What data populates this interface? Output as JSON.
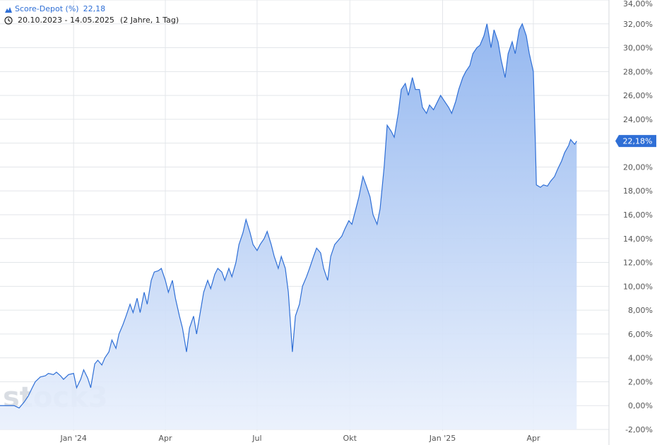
{
  "legend": {
    "series_name": "Score-Depot (%)",
    "series_value": "22,18",
    "range_icon": "clock-icon",
    "series_icon": "mountain-chart-icon",
    "date_range": "20.10.2023 - 14.05.2025",
    "range_detail": "(2 Jahre, 1 Tag)"
  },
  "watermark": "stock3",
  "chart_data": {
    "type": "area",
    "title": "",
    "xlabel": "",
    "ylabel": "",
    "unit": "%",
    "x_ticks": [
      {
        "label": "Jan '24",
        "date": "2024-01-01"
      },
      {
        "label": "Apr",
        "date": "2024-04-01"
      },
      {
        "label": "Jul",
        "date": "2024-07-01"
      },
      {
        "label": "Okt",
        "date": "2024-10-01"
      },
      {
        "label": "Jan '25",
        "date": "2025-01-01"
      },
      {
        "label": "Apr",
        "date": "2025-04-01"
      }
    ],
    "y_ticks": [
      "34,00%",
      "32,00%",
      "30,00%",
      "28,00%",
      "26,00%",
      "24,00%",
      "22,00%",
      "20,00%",
      "18,00%",
      "16,00%",
      "14,00%",
      "12,00%",
      "10,00%",
      "8,00%",
      "6,00%",
      "4,00%",
      "2,00%",
      "0,00%",
      "-2,00%"
    ],
    "y_tick_values": [
      34,
      32,
      30,
      28,
      26,
      24,
      22,
      20,
      18,
      16,
      14,
      12,
      10,
      8,
      6,
      4,
      2,
      0,
      -2
    ],
    "xlim": [
      "2023-10-20",
      "2025-06-15"
    ],
    "ylim": [
      -2,
      34
    ],
    "grid": true,
    "last_value_label": "22,18%",
    "last_value": 22.18,
    "series": [
      {
        "name": "Score-Depot (%)",
        "color": "#2f6fd6",
        "points": [
          [
            "2023-10-20",
            0
          ],
          [
            "2023-10-27",
            0
          ],
          [
            "2023-11-03",
            0
          ],
          [
            "2023-11-08",
            -0.2
          ],
          [
            "2023-11-13",
            0.3
          ],
          [
            "2023-11-17",
            0.8
          ],
          [
            "2023-11-21",
            1.5
          ],
          [
            "2023-11-24",
            2.0
          ],
          [
            "2023-11-29",
            2.4
          ],
          [
            "2023-12-04",
            2.5
          ],
          [
            "2023-12-07",
            2.7
          ],
          [
            "2023-12-12",
            2.6
          ],
          [
            "2023-12-15",
            2.8
          ],
          [
            "2023-12-19",
            2.5
          ],
          [
            "2023-12-22",
            2.2
          ],
          [
            "2023-12-27",
            2.6
          ],
          [
            "2024-01-01",
            2.7
          ],
          [
            "2024-01-04",
            1.5
          ],
          [
            "2024-01-08",
            2.2
          ],
          [
            "2024-01-11",
            3.0
          ],
          [
            "2024-01-15",
            2.3
          ],
          [
            "2024-01-18",
            1.5
          ],
          [
            "2024-01-22",
            3.5
          ],
          [
            "2024-01-25",
            3.8
          ],
          [
            "2024-01-29",
            3.4
          ],
          [
            "2024-02-01",
            4.0
          ],
          [
            "2024-02-05",
            4.5
          ],
          [
            "2024-02-08",
            5.5
          ],
          [
            "2024-02-12",
            4.8
          ],
          [
            "2024-02-15",
            6.0
          ],
          [
            "2024-02-19",
            6.8
          ],
          [
            "2024-02-22",
            7.5
          ],
          [
            "2024-02-26",
            8.5
          ],
          [
            "2024-02-29",
            7.8
          ],
          [
            "2024-03-04",
            9.0
          ],
          [
            "2024-03-07",
            7.8
          ],
          [
            "2024-03-11",
            9.5
          ],
          [
            "2024-03-14",
            8.5
          ],
          [
            "2024-03-18",
            10.5
          ],
          [
            "2024-03-21",
            11.2
          ],
          [
            "2024-03-25",
            11.3
          ],
          [
            "2024-03-28",
            11.5
          ],
          [
            "2024-04-01",
            10.5
          ],
          [
            "2024-04-04",
            9.5
          ],
          [
            "2024-04-08",
            10.5
          ],
          [
            "2024-04-11",
            9.0
          ],
          [
            "2024-04-15",
            7.5
          ],
          [
            "2024-04-18",
            6.5
          ],
          [
            "2024-04-22",
            4.5
          ],
          [
            "2024-04-25",
            6.5
          ],
          [
            "2024-04-29",
            7.5
          ],
          [
            "2024-05-02",
            6.0
          ],
          [
            "2024-05-06",
            8.0
          ],
          [
            "2024-05-09",
            9.5
          ],
          [
            "2024-05-13",
            10.5
          ],
          [
            "2024-05-16",
            9.8
          ],
          [
            "2024-05-20",
            11.0
          ],
          [
            "2024-05-23",
            11.5
          ],
          [
            "2024-05-27",
            11.2
          ],
          [
            "2024-05-30",
            10.5
          ],
          [
            "2024-06-03",
            11.5
          ],
          [
            "2024-06-06",
            10.8
          ],
          [
            "2024-06-10",
            12.0
          ],
          [
            "2024-06-13",
            13.5
          ],
          [
            "2024-06-17",
            14.5
          ],
          [
            "2024-06-20",
            15.6
          ],
          [
            "2024-06-24",
            14.5
          ],
          [
            "2024-06-27",
            13.5
          ],
          [
            "2024-07-01",
            13.0
          ],
          [
            "2024-07-04",
            13.5
          ],
          [
            "2024-07-08",
            14.0
          ],
          [
            "2024-07-11",
            14.6
          ],
          [
            "2024-07-15",
            13.5
          ],
          [
            "2024-07-18",
            12.5
          ],
          [
            "2024-07-22",
            11.5
          ],
          [
            "2024-07-25",
            12.5
          ],
          [
            "2024-07-29",
            11.5
          ],
          [
            "2024-08-01",
            9.5
          ],
          [
            "2024-08-05",
            4.5
          ],
          [
            "2024-08-08",
            7.5
          ],
          [
            "2024-08-12",
            8.5
          ],
          [
            "2024-08-15",
            10.0
          ],
          [
            "2024-08-19",
            10.8
          ],
          [
            "2024-08-22",
            11.5
          ],
          [
            "2024-08-26",
            12.5
          ],
          [
            "2024-08-29",
            13.2
          ],
          [
            "2024-09-02",
            12.8
          ],
          [
            "2024-09-05",
            11.5
          ],
          [
            "2024-09-09",
            10.5
          ],
          [
            "2024-09-12",
            12.5
          ],
          [
            "2024-09-16",
            13.5
          ],
          [
            "2024-09-19",
            13.8
          ],
          [
            "2024-09-23",
            14.2
          ],
          [
            "2024-09-26",
            14.8
          ],
          [
            "2024-09-30",
            15.5
          ],
          [
            "2024-10-03",
            15.2
          ],
          [
            "2024-10-07",
            16.5
          ],
          [
            "2024-10-10",
            17.5
          ],
          [
            "2024-10-14",
            19.2
          ],
          [
            "2024-10-17",
            18.5
          ],
          [
            "2024-10-21",
            17.5
          ],
          [
            "2024-10-24",
            16.0
          ],
          [
            "2024-10-28",
            15.2
          ],
          [
            "2024-10-31",
            16.5
          ],
          [
            "2024-11-04",
            20.0
          ],
          [
            "2024-11-07",
            23.5
          ],
          [
            "2024-11-11",
            23.0
          ],
          [
            "2024-11-14",
            22.5
          ],
          [
            "2024-11-18",
            24.5
          ],
          [
            "2024-11-21",
            26.5
          ],
          [
            "2024-11-25",
            27.0
          ],
          [
            "2024-11-28",
            26.0
          ],
          [
            "2024-12-02",
            27.5
          ],
          [
            "2024-12-05",
            26.5
          ],
          [
            "2024-12-09",
            26.5
          ],
          [
            "2024-12-12",
            25.0
          ],
          [
            "2024-12-16",
            24.5
          ],
          [
            "2024-12-19",
            25.2
          ],
          [
            "2024-12-23",
            24.8
          ],
          [
            "2024-12-30",
            26.0
          ],
          [
            "2025-01-03",
            25.5
          ],
          [
            "2025-01-07",
            25.0
          ],
          [
            "2025-01-10",
            24.5
          ],
          [
            "2025-01-14",
            25.5
          ],
          [
            "2025-01-17",
            26.5
          ],
          [
            "2025-01-21",
            27.5
          ],
          [
            "2025-01-24",
            28.0
          ],
          [
            "2025-01-28",
            28.5
          ],
          [
            "2025-01-31",
            29.5
          ],
          [
            "2025-02-04",
            30.0
          ],
          [
            "2025-02-07",
            30.2
          ],
          [
            "2025-02-11",
            31.0
          ],
          [
            "2025-02-14",
            32.0
          ],
          [
            "2025-02-18",
            30.0
          ],
          [
            "2025-02-21",
            31.5
          ],
          [
            "2025-02-25",
            30.5
          ],
          [
            "2025-02-28",
            29.0
          ],
          [
            "2025-03-04",
            27.5
          ],
          [
            "2025-03-07",
            29.5
          ],
          [
            "2025-03-11",
            30.5
          ],
          [
            "2025-03-14",
            29.5
          ],
          [
            "2025-03-18",
            31.5
          ],
          [
            "2025-03-21",
            32.0
          ],
          [
            "2025-03-25",
            31.0
          ],
          [
            "2025-03-28",
            29.5
          ],
          [
            "2025-04-01",
            28.0
          ],
          [
            "2025-04-03",
            22.0
          ],
          [
            "2025-04-04",
            18.5
          ],
          [
            "2025-04-08",
            18.3
          ],
          [
            "2025-04-11",
            18.5
          ],
          [
            "2025-04-15",
            18.4
          ],
          [
            "2025-04-18",
            18.8
          ],
          [
            "2025-04-22",
            19.2
          ],
          [
            "2025-04-25",
            19.8
          ],
          [
            "2025-04-29",
            20.5
          ],
          [
            "2025-05-02",
            21.2
          ],
          [
            "2025-05-06",
            21.8
          ],
          [
            "2025-05-08",
            22.3
          ],
          [
            "2025-05-12",
            21.9
          ],
          [
            "2025-05-14",
            22.18
          ]
        ]
      }
    ]
  }
}
